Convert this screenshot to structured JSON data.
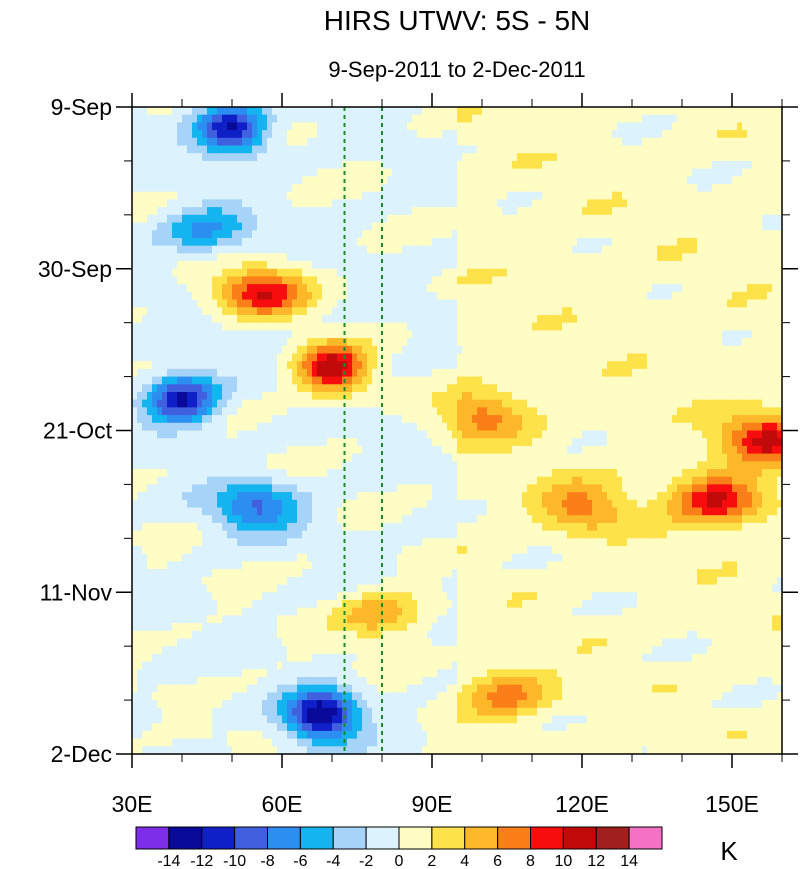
{
  "chart_data": {
    "type": "heatmap",
    "title": "HIRS UTWV: 5S - 5N",
    "subtitle": "9-Sep-2011 to 2-Dec-2011",
    "x_axis": {
      "range": [
        30,
        160
      ],
      "ticks": [
        30,
        60,
        90,
        120,
        150
      ],
      "tick_labels": [
        "30E",
        "60E",
        "90E",
        "120E",
        "150E"
      ],
      "minor_step": 10
    },
    "y_axis": {
      "range_days": [
        0,
        84
      ],
      "ticks": [
        0,
        21,
        42,
        63,
        84
      ],
      "tick_labels": [
        "9-Sep",
        "30-Sep",
        "21-Oct",
        "11-Nov",
        "2-Dec"
      ],
      "minor_step_days": 7,
      "direction": "top-to-bottom"
    },
    "reference_lines": [
      {
        "lon": 72.5,
        "style": "dashed",
        "color": "#1e8a2e"
      },
      {
        "lon": 80,
        "style": "dashed",
        "color": "#1e8a2e"
      }
    ],
    "colorbar": {
      "unit": "K",
      "levels": [
        -14,
        -12,
        -10,
        -8,
        -6,
        -4,
        -2,
        0,
        2,
        4,
        6,
        8,
        10,
        12,
        14
      ],
      "labels": [
        "-14",
        "-12",
        "-10",
        "-8",
        "-6",
        "-4",
        "-2",
        "0",
        "2",
        "4",
        "6",
        "8",
        "10",
        "12",
        "14"
      ],
      "colors": [
        "#7d2ee8",
        "#0a0a9a",
        "#1020c8",
        "#4060e0",
        "#2c8ef0",
        "#14b4f0",
        "#a6d4f8",
        "#dcf2fc",
        "#fffcc4",
        "#fde24a",
        "#fcb828",
        "#fb7f18",
        "#f70d0d",
        "#c20a0a",
        "#a02020",
        "#f472c4"
      ]
    },
    "features": [
      {
        "name": "dry anomaly",
        "lon": 50,
        "day": 3,
        "value": -12
      },
      {
        "name": "dry band",
        "lon": 45,
        "day": 16,
        "value": -6
      },
      {
        "name": "wet anomaly",
        "lon": 56,
        "day": 24,
        "value": 10
      },
      {
        "name": "strong wet anomaly",
        "lon": 70,
        "day": 34,
        "value": 12
      },
      {
        "name": "dry anomaly",
        "lon": 40,
        "day": 38,
        "value": -12
      },
      {
        "name": "wet band",
        "lon": 100,
        "day": 40,
        "value": 6
      },
      {
        "name": "wet anomaly",
        "lon": 157,
        "day": 43,
        "value": 10
      },
      {
        "name": "dry band",
        "lon": 55,
        "day": 52,
        "value": -8
      },
      {
        "name": "wet anomaly",
        "lon": 147,
        "day": 51,
        "value": 10
      },
      {
        "name": "wet band",
        "lon": 120,
        "day": 52,
        "value": 6
      },
      {
        "name": "wet band",
        "lon": 80,
        "day": 66,
        "value": 6
      },
      {
        "name": "strong dry anomaly",
        "lon": 68,
        "day": 79,
        "value": -14
      },
      {
        "name": "wet band",
        "lon": 105,
        "day": 76,
        "value": 6
      }
    ]
  }
}
